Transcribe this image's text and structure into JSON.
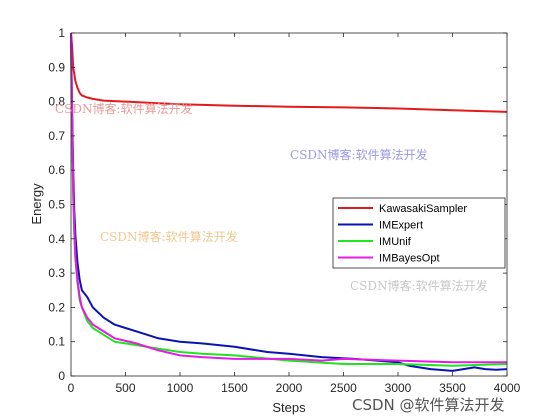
{
  "chart_data": {
    "type": "line",
    "title": "",
    "xlabel": "Steps",
    "ylabel": "Energy",
    "xlim": [
      0,
      4000
    ],
    "ylim": [
      0,
      1
    ],
    "xticks": [
      0,
      500,
      1000,
      1500,
      2000,
      2500,
      3000,
      3500,
      4000
    ],
    "yticks": [
      0,
      0.1,
      0.2,
      0.3,
      0.4,
      0.5,
      0.6,
      0.7,
      0.8,
      0.9,
      1
    ],
    "grid": false,
    "legend_position": "center-right",
    "series": [
      {
        "name": "KawasakiSampler",
        "color": "#e31a1c",
        "x": [
          0,
          10,
          20,
          40,
          60,
          80,
          100,
          150,
          200,
          300,
          500,
          800,
          1000,
          1500,
          2000,
          2500,
          3000,
          3500,
          4000
        ],
        "y": [
          1.0,
          0.96,
          0.9,
          0.86,
          0.84,
          0.825,
          0.818,
          0.812,
          0.808,
          0.803,
          0.8,
          0.795,
          0.792,
          0.788,
          0.785,
          0.783,
          0.78,
          0.775,
          0.77
        ]
      },
      {
        "name": "IMExpert",
        "color": "#0a14b4",
        "x": [
          0,
          10,
          20,
          30,
          40,
          60,
          80,
          100,
          150,
          200,
          300,
          400,
          500,
          700,
          800,
          1000,
          1200,
          1500,
          1800,
          2000,
          2300,
          2600,
          3000,
          3100,
          3300,
          3500,
          3700,
          3800,
          3900,
          4000
        ],
        "y": [
          1.0,
          0.78,
          0.6,
          0.48,
          0.41,
          0.33,
          0.28,
          0.25,
          0.23,
          0.2,
          0.17,
          0.15,
          0.14,
          0.12,
          0.11,
          0.1,
          0.095,
          0.085,
          0.07,
          0.065,
          0.055,
          0.05,
          0.04,
          0.03,
          0.02,
          0.015,
          0.025,
          0.02,
          0.018,
          0.02
        ]
      },
      {
        "name": "IMUnif",
        "color": "#1ee61e",
        "x": [
          0,
          10,
          20,
          30,
          40,
          60,
          80,
          100,
          150,
          200,
          300,
          400,
          600,
          800,
          1000,
          1200,
          1500,
          2000,
          2500,
          3000,
          3500,
          4000
        ],
        "y": [
          0.95,
          0.7,
          0.52,
          0.42,
          0.34,
          0.27,
          0.22,
          0.2,
          0.16,
          0.14,
          0.12,
          0.1,
          0.09,
          0.08,
          0.07,
          0.065,
          0.06,
          0.045,
          0.035,
          0.035,
          0.03,
          0.035
        ]
      },
      {
        "name": "IMBayesOpt",
        "color": "#e619e6",
        "x": [
          0,
          10,
          20,
          30,
          40,
          60,
          80,
          100,
          150,
          200,
          300,
          400,
          600,
          800,
          1000,
          1200,
          1500,
          2000,
          2300,
          2500,
          3000,
          3500,
          4000
        ],
        "y": [
          1.0,
          0.75,
          0.55,
          0.42,
          0.35,
          0.28,
          0.23,
          0.2,
          0.17,
          0.15,
          0.13,
          0.11,
          0.095,
          0.075,
          0.06,
          0.055,
          0.05,
          0.05,
          0.045,
          0.05,
          0.045,
          0.04,
          0.04
        ]
      }
    ]
  },
  "watermarks": [
    "CSDN博客:软件算法开发",
    "CSDN博客:软件算法开发",
    "CSDN博客:软件算法开发",
    "CSDN博客:软件算法开发",
    "CSDN @软件算法开发"
  ]
}
